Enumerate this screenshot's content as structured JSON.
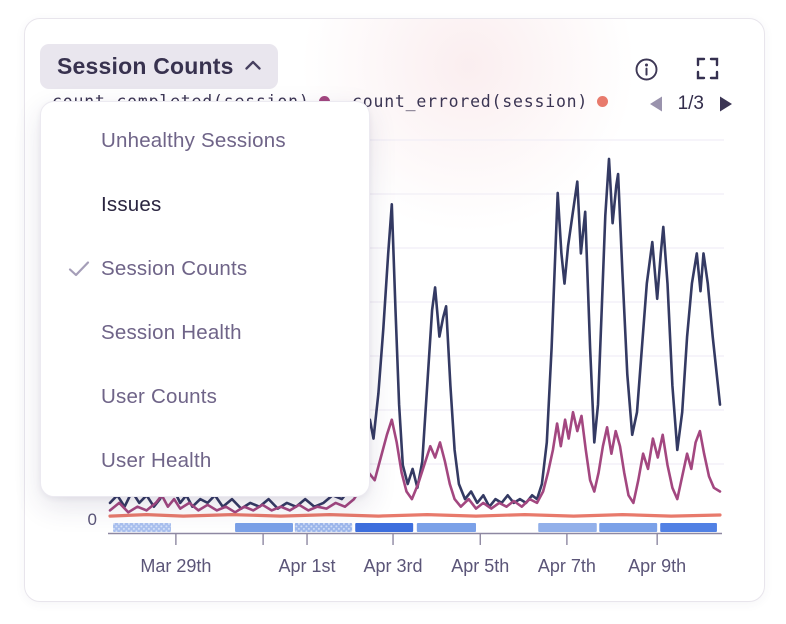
{
  "header": {
    "title": "Session Counts",
    "chevron_icon": "chevron-up-icon"
  },
  "toolbar": {
    "info_icon": "info-icon",
    "fullscreen_icon": "fullscreen-icon"
  },
  "legend": {
    "items": [
      {
        "label": "count_completed(session)",
        "color": "#a34780"
      },
      {
        "label": "count_errored(session)",
        "color": "#e87a6c"
      }
    ],
    "pagination": {
      "label": "1/3",
      "prev_icon": "previous-page-icon",
      "next_icon": "next-page-icon"
    }
  },
  "dropdown": {
    "items": [
      {
        "label": "Unhealthy Sessions",
        "selected": false
      },
      {
        "label": "Issues",
        "selected": false,
        "emphasized": true
      },
      {
        "label": "Session Counts",
        "selected": true
      },
      {
        "label": "Session Health",
        "selected": false
      },
      {
        "label": "User Counts",
        "selected": false
      },
      {
        "label": "User Health",
        "selected": false
      }
    ]
  },
  "chart_data": {
    "type": "line",
    "title": "Session Counts",
    "y_axis": {
      "visible_labels": [
        "0"
      ],
      "min": 0,
      "max_relative_units": 100,
      "note": "only the 0 tick is labeled; series values are relative units estimated from pixel heights"
    },
    "x_axis": {
      "ticks": [
        {
          "f": 0.108,
          "label": "Mar 29th"
        },
        {
          "f": 0.251,
          "label": ""
        },
        {
          "f": 0.323,
          "label": "Apr 1st"
        },
        {
          "f": 0.464,
          "label": "Apr 3rd"
        },
        {
          "f": 0.607,
          "label": "Apr 5th"
        },
        {
          "f": 0.749,
          "label": "Apr 7th"
        },
        {
          "f": 0.897,
          "label": "Apr 9th"
        }
      ]
    },
    "grid": {
      "horizontal_lines": 7,
      "color": "#f1eef6"
    },
    "legend_pagination": "1/3",
    "series": [
      {
        "name": "unlabeled (legend on another page)",
        "color": "#343a63",
        "width": 2.6,
        "points": [
          [
            0,
            4
          ],
          [
            0.012,
            6
          ],
          [
            0.024,
            3
          ],
          [
            0.036,
            7
          ],
          [
            0.048,
            4
          ],
          [
            0.06,
            6
          ],
          [
            0.072,
            3
          ],
          [
            0.082,
            5
          ],
          [
            0.09,
            8
          ],
          [
            0.098,
            6
          ],
          [
            0.106,
            7
          ],
          [
            0.115,
            4
          ],
          [
            0.125,
            6
          ],
          [
            0.135,
            3
          ],
          [
            0.148,
            5
          ],
          [
            0.16,
            4
          ],
          [
            0.172,
            6
          ],
          [
            0.185,
            3
          ],
          [
            0.2,
            5
          ],
          [
            0.215,
            2.5
          ],
          [
            0.23,
            4
          ],
          [
            0.245,
            3
          ],
          [
            0.26,
            5
          ],
          [
            0.275,
            2.5
          ],
          [
            0.29,
            4
          ],
          [
            0.305,
            3
          ],
          [
            0.32,
            5
          ],
          [
            0.335,
            3
          ],
          [
            0.35,
            4
          ],
          [
            0.365,
            6
          ],
          [
            0.38,
            5
          ],
          [
            0.395,
            8
          ],
          [
            0.405,
            12
          ],
          [
            0.418,
            16
          ],
          [
            0.426,
            26
          ],
          [
            0.432,
            21
          ],
          [
            0.44,
            33
          ],
          [
            0.448,
            50
          ],
          [
            0.456,
            70
          ],
          [
            0.462,
            83
          ],
          [
            0.468,
            55
          ],
          [
            0.474,
            30
          ],
          [
            0.48,
            14
          ],
          [
            0.488,
            9
          ],
          [
            0.496,
            13
          ],
          [
            0.504,
            8
          ],
          [
            0.512,
            15
          ],
          [
            0.52,
            35
          ],
          [
            0.528,
            55
          ],
          [
            0.533,
            61
          ],
          [
            0.54,
            48
          ],
          [
            0.546,
            53
          ],
          [
            0.551,
            56
          ],
          [
            0.558,
            35
          ],
          [
            0.565,
            18
          ],
          [
            0.572,
            9
          ],
          [
            0.582,
            5
          ],
          [
            0.592,
            7
          ],
          [
            0.602,
            4
          ],
          [
            0.612,
            6
          ],
          [
            0.622,
            3
          ],
          [
            0.632,
            5
          ],
          [
            0.642,
            4
          ],
          [
            0.652,
            6
          ],
          [
            0.662,
            4
          ],
          [
            0.672,
            5
          ],
          [
            0.682,
            4
          ],
          [
            0.692,
            6
          ],
          [
            0.7,
            5
          ],
          [
            0.708,
            9
          ],
          [
            0.716,
            20
          ],
          [
            0.724,
            45
          ],
          [
            0.73,
            70
          ],
          [
            0.734,
            86
          ],
          [
            0.74,
            70
          ],
          [
            0.745,
            62
          ],
          [
            0.751,
            72
          ],
          [
            0.758,
            80
          ],
          [
            0.766,
            89
          ],
          [
            0.772,
            70
          ],
          [
            0.779,
            81
          ],
          [
            0.787,
            45
          ],
          [
            0.794,
            20
          ],
          [
            0.8,
            30
          ],
          [
            0.806,
            55
          ],
          [
            0.812,
            80
          ],
          [
            0.818,
            95
          ],
          [
            0.824,
            78
          ],
          [
            0.83,
            88
          ],
          [
            0.833,
            91
          ],
          [
            0.84,
            65
          ],
          [
            0.848,
            38
          ],
          [
            0.856,
            22
          ],
          [
            0.864,
            28
          ],
          [
            0.872,
            45
          ],
          [
            0.88,
            62
          ],
          [
            0.889,
            73
          ],
          [
            0.897,
            58
          ],
          [
            0.903,
            70
          ],
          [
            0.907,
            77
          ],
          [
            0.914,
            62
          ],
          [
            0.922,
            35
          ],
          [
            0.93,
            18
          ],
          [
            0.938,
            28
          ],
          [
            0.946,
            48
          ],
          [
            0.954,
            62
          ],
          [
            0.962,
            70
          ],
          [
            0.968,
            60
          ],
          [
            0.973,
            70
          ],
          [
            0.98,
            62
          ],
          [
            0.988,
            48
          ],
          [
            1,
            30
          ]
        ]
      },
      {
        "name": "count_completed(session)",
        "color": "#a34780",
        "width": 2.6,
        "points": [
          [
            0,
            2
          ],
          [
            0.015,
            4
          ],
          [
            0.03,
            1.5
          ],
          [
            0.045,
            3
          ],
          [
            0.06,
            2
          ],
          [
            0.075,
            4
          ],
          [
            0.085,
            6
          ],
          [
            0.095,
            3
          ],
          [
            0.105,
            5
          ],
          [
            0.115,
            2.5
          ],
          [
            0.13,
            4
          ],
          [
            0.145,
            2
          ],
          [
            0.16,
            3.5
          ],
          [
            0.175,
            2
          ],
          [
            0.19,
            3
          ],
          [
            0.205,
            1.5
          ],
          [
            0.22,
            3
          ],
          [
            0.235,
            2
          ],
          [
            0.25,
            3.5
          ],
          [
            0.265,
            2
          ],
          [
            0.28,
            3
          ],
          [
            0.295,
            2
          ],
          [
            0.31,
            3.5
          ],
          [
            0.325,
            2
          ],
          [
            0.34,
            3
          ],
          [
            0.355,
            2.5
          ],
          [
            0.37,
            4
          ],
          [
            0.385,
            3
          ],
          [
            0.4,
            5
          ],
          [
            0.412,
            8
          ],
          [
            0.424,
            12
          ],
          [
            0.434,
            10
          ],
          [
            0.444,
            16
          ],
          [
            0.454,
            22
          ],
          [
            0.462,
            26
          ],
          [
            0.47,
            20
          ],
          [
            0.478,
            12
          ],
          [
            0.486,
            7
          ],
          [
            0.495,
            5
          ],
          [
            0.505,
            9
          ],
          [
            0.515,
            14
          ],
          [
            0.525,
            19
          ],
          [
            0.533,
            16
          ],
          [
            0.541,
            20
          ],
          [
            0.549,
            15
          ],
          [
            0.557,
            9
          ],
          [
            0.565,
            5
          ],
          [
            0.575,
            3
          ],
          [
            0.588,
            5
          ],
          [
            0.6,
            2.5
          ],
          [
            0.612,
            4
          ],
          [
            0.625,
            2.5
          ],
          [
            0.638,
            4
          ],
          [
            0.65,
            3
          ],
          [
            0.662,
            4.5
          ],
          [
            0.675,
            3
          ],
          [
            0.688,
            5
          ],
          [
            0.7,
            4
          ],
          [
            0.71,
            7
          ],
          [
            0.718,
            12
          ],
          [
            0.726,
            18
          ],
          [
            0.733,
            25
          ],
          [
            0.739,
            19
          ],
          [
            0.746,
            26
          ],
          [
            0.752,
            21
          ],
          [
            0.759,
            28
          ],
          [
            0.766,
            23
          ],
          [
            0.773,
            27
          ],
          [
            0.78,
            18
          ],
          [
            0.787,
            10
          ],
          [
            0.794,
            7
          ],
          [
            0.801,
            12
          ],
          [
            0.808,
            19
          ],
          [
            0.815,
            24
          ],
          [
            0.822,
            17
          ],
          [
            0.829,
            23
          ],
          [
            0.836,
            19
          ],
          [
            0.843,
            12
          ],
          [
            0.85,
            6
          ],
          [
            0.858,
            4
          ],
          [
            0.866,
            10
          ],
          [
            0.874,
            17
          ],
          [
            0.882,
            13
          ],
          [
            0.89,
            21
          ],
          [
            0.898,
            16
          ],
          [
            0.906,
            22
          ],
          [
            0.914,
            14
          ],
          [
            0.922,
            8
          ],
          [
            0.93,
            5
          ],
          [
            0.938,
            11
          ],
          [
            0.946,
            17
          ],
          [
            0.953,
            13
          ],
          [
            0.96,
            20
          ],
          [
            0.967,
            23
          ],
          [
            0.974,
            17
          ],
          [
            0.982,
            11
          ],
          [
            0.99,
            8
          ],
          [
            1,
            7
          ]
        ]
      },
      {
        "name": "count_errored(session)",
        "color": "#e87a6c",
        "width": 3.2,
        "points": [
          [
            0,
            0.5
          ],
          [
            0.06,
            0.9
          ],
          [
            0.12,
            0.5
          ],
          [
            0.2,
            0.9
          ],
          [
            0.28,
            0.5
          ],
          [
            0.36,
            0.9
          ],
          [
            0.44,
            0.5
          ],
          [
            0.52,
            0.9
          ],
          [
            0.6,
            0.5
          ],
          [
            0.68,
            0.9
          ],
          [
            0.76,
            0.5
          ],
          [
            0.84,
            0.9
          ],
          [
            0.92,
            0.5
          ],
          [
            1,
            0.8
          ]
        ]
      }
    ],
    "release_bar_segments": [
      {
        "f0": 0.005,
        "f1": 0.1,
        "color": "#a9c0ef",
        "textured": true
      },
      {
        "f0": 0.205,
        "f1": 0.3,
        "color": "#7ba1e8",
        "textured": false
      },
      {
        "f0": 0.303,
        "f1": 0.397,
        "color": "#9db7ec",
        "textured": true
      },
      {
        "f0": 0.402,
        "f1": 0.497,
        "color": "#3d6edd",
        "textured": false
      },
      {
        "f0": 0.503,
        "f1": 0.6,
        "color": "#7ba1e8",
        "textured": false
      },
      {
        "f0": 0.702,
        "f1": 0.798,
        "color": "#92b0ea",
        "textured": false
      },
      {
        "f0": 0.802,
        "f1": 0.897,
        "color": "#7ba1e8",
        "textured": false
      },
      {
        "f0": 0.902,
        "f1": 0.995,
        "color": "#5181e4",
        "textured": false
      }
    ]
  }
}
